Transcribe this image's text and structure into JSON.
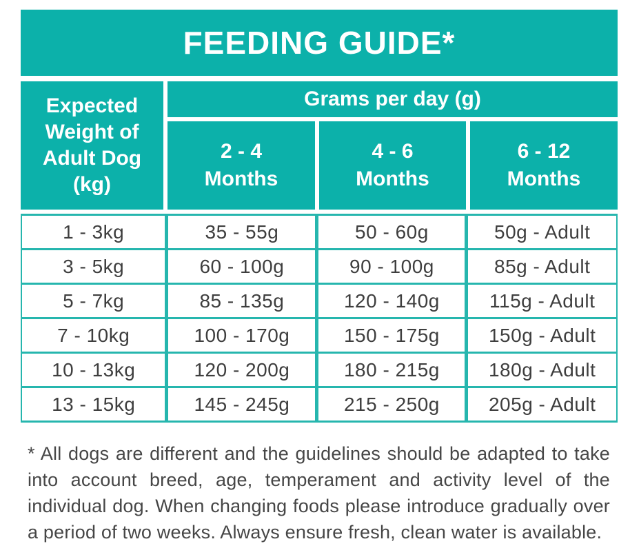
{
  "title": "FEEDING GUIDE*",
  "colors": {
    "header_fill": "#0cb1aa",
    "grid_border": "#26b6ae",
    "header_text": "#ffffff",
    "body_text": "#3e3e3e"
  },
  "table": {
    "corner_header": "Expected Weight of Adult Dog (kg)",
    "group_header": "Grams per day (g)",
    "column_headers": [
      "2 - 4 Months",
      "4 - 6 Months",
      "6 - 12 Months"
    ],
    "rows": [
      [
        "1 - 3kg",
        "35 - 55g",
        "50 - 60g",
        "50g - Adult"
      ],
      [
        "3 - 5kg",
        "60 - 100g",
        "90 - 100g",
        "85g - Adult"
      ],
      [
        "5 - 7kg",
        "85 - 135g",
        "120 - 140g",
        "115g - Adult"
      ],
      [
        "7 - 10kg",
        "100 - 170g",
        "150 - 175g",
        "150g - Adult"
      ],
      [
        "10 - 13kg",
        "120 - 200g",
        "180 - 215g",
        "180g - Adult"
      ],
      [
        "13 - 15kg",
        "145 - 245g",
        "215 - 250g",
        "205g - Adult"
      ]
    ]
  },
  "footnote": "* All dogs are different and the guidelines should be adapted to take into account breed, age, temperament and activity level of the individual dog. When changing foods please introduce gradually over a period of two weeks. Always ensure fresh, clean water is available."
}
